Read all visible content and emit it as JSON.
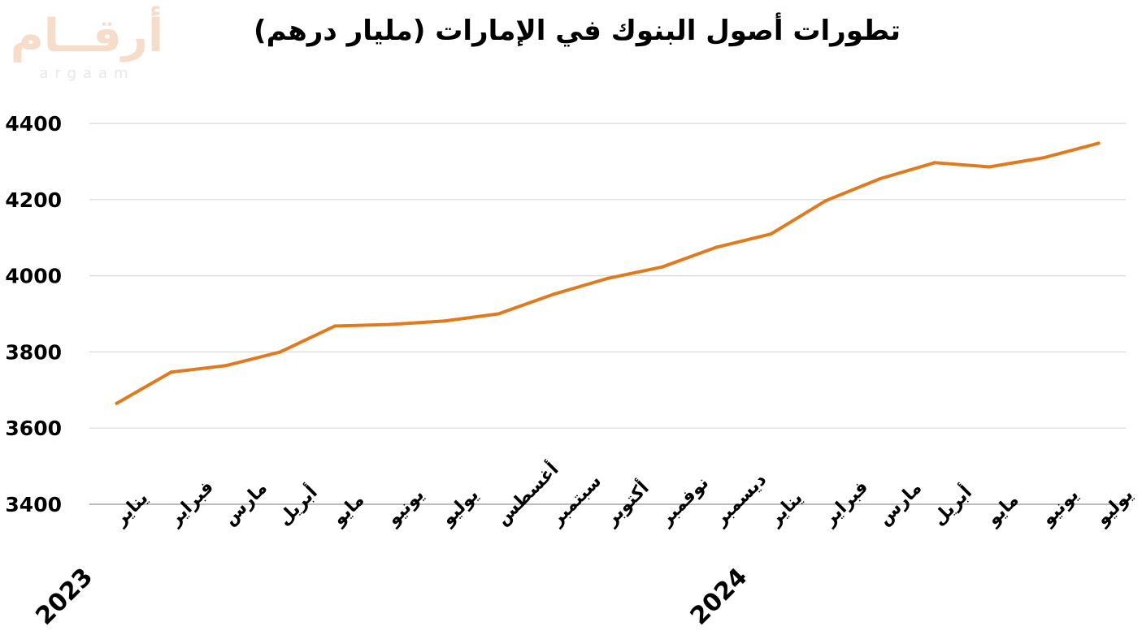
{
  "chart_data": {
    "type": "line",
    "title": "تطورات أصول البنوك في الإمارات (مليار درهم)",
    "xlabel": "",
    "ylabel": "",
    "ylim": [
      3400,
      4400
    ],
    "yticks": [
      3400,
      3600,
      3800,
      4000,
      4200,
      4400
    ],
    "grid": true,
    "line_color": "#e07a1f",
    "categories": [
      "يناير",
      "فبراير",
      "مارس",
      "أبريل",
      "مايو",
      "يونيو",
      "يوليو",
      "أغسطس",
      "سبتمبر",
      "أكتوبر",
      "نوفمبر",
      "ديسمبر",
      "يناير",
      "فبراير",
      "مارس",
      "أبريل",
      "مايو",
      "يونيو",
      "يوليو"
    ],
    "year_labels": [
      {
        "label": "2023",
        "category_index": 0
      },
      {
        "label": "2024",
        "category_index": 12
      }
    ],
    "series": [
      {
        "values": [
          3665,
          3747,
          3764,
          3800,
          3868,
          3872,
          3881,
          3900,
          3951,
          3993,
          4023,
          4075,
          4110,
          4197,
          4255,
          4297,
          4286,
          4310,
          4348
        ]
      }
    ]
  },
  "logo": {
    "arabic": "أرقــام",
    "latin": "argaam"
  }
}
